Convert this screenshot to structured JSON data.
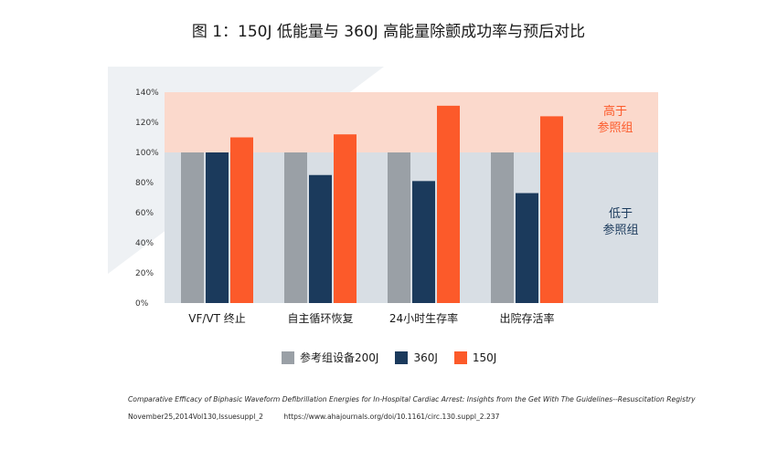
{
  "colors": {
    "reference": "#9aa0a6",
    "j360": "#1b3a5c",
    "j150": "#fc5a2a",
    "high_zone": "#fbd9cc",
    "low_zone": "#d8dee4",
    "high_text": "#fc5a2a",
    "low_text": "#1b3a5c"
  },
  "zones": {
    "high_line1": "高于",
    "high_line2": "参照组",
    "low_line1": "低于",
    "low_line2": "参照组"
  },
  "chart_data": {
    "type": "bar",
    "title": "图 1：150J 低能量与 360J 高能量除颤成功率与预后对比",
    "categories": [
      "VF/VT 终止",
      "自主循环恢复",
      "24小时生存率",
      "出院存活率"
    ],
    "series": [
      {
        "name": "参考组设备200J",
        "values": [
          100,
          100,
          100,
          100
        ]
      },
      {
        "name": "360J",
        "values": [
          100,
          85,
          81,
          73
        ]
      },
      {
        "name": "150J",
        "values": [
          110,
          112,
          131,
          124
        ]
      }
    ],
    "yticks": [
      "0%",
      "20%",
      "40%",
      "60%",
      "80%",
      "100%",
      "120%",
      "140%"
    ],
    "ylim": [
      0,
      140
    ],
    "reference_line": 100,
    "xlabel": "",
    "ylabel": ""
  },
  "source": {
    "citation": "Comparative Efficacy of Biphasic Waveform Defibrillation Energies for In-Hospital Cardiac Arrest: Insights from the Get With The Guidelines--Resuscitation Registry",
    "date": "November25,2014Vol130,Issuesuppl_2",
    "url": "https://www.ahajournals.org/doi/10.1161/circ.130.suppl_2.237"
  }
}
